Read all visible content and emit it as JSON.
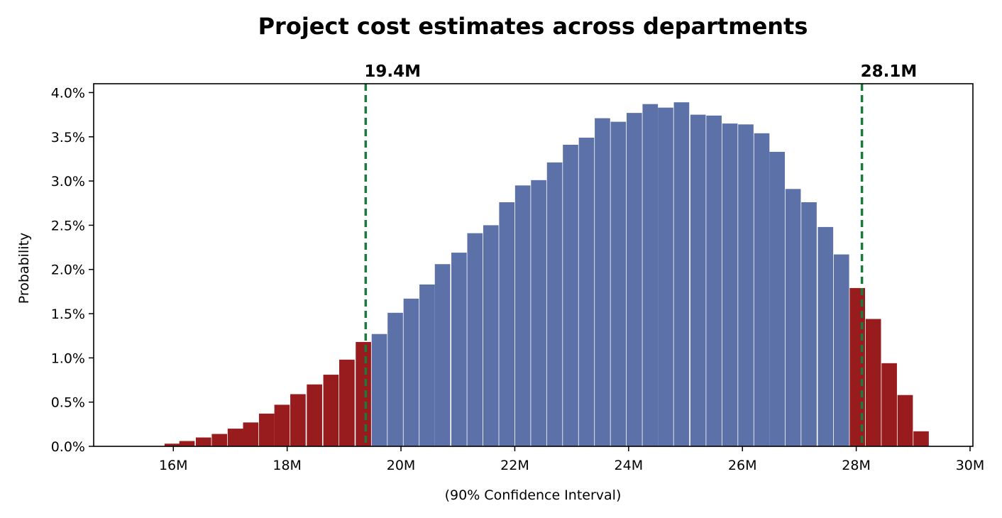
{
  "chart_data": {
    "type": "bar",
    "title": "Project cost estimates across departments",
    "xlabel": "(90% Confidence Interval)",
    "ylabel": "Probability",
    "xlim": [
      14.6,
      30.05
    ],
    "ylim": [
      0,
      0.041
    ],
    "grid": false,
    "bin_width_m": 0.27,
    "x_ticks": [
      {
        "value": 16,
        "label": "16M"
      },
      {
        "value": 18,
        "label": "18M"
      },
      {
        "value": 20,
        "label": "20M"
      },
      {
        "value": 22,
        "label": "22M"
      },
      {
        "value": 24,
        "label": "24M"
      },
      {
        "value": 26,
        "label": "26M"
      },
      {
        "value": 28,
        "label": "28M"
      },
      {
        "value": 30,
        "label": "30M"
      }
    ],
    "y_ticks": [
      {
        "value": 0.0,
        "label": "0.0%"
      },
      {
        "value": 0.005,
        "label": "0.5%"
      },
      {
        "value": 0.01,
        "label": "1.0%"
      },
      {
        "value": 0.015,
        "label": "1.5%"
      },
      {
        "value": 0.02,
        "label": "2.0%"
      },
      {
        "value": 0.025,
        "label": "2.5%"
      },
      {
        "value": 0.03,
        "label": "3.0%"
      },
      {
        "value": 0.035,
        "label": "3.5%"
      },
      {
        "value": 0.04,
        "label": "4.0%"
      }
    ],
    "colors": {
      "inside": "#5b71a8",
      "outside": "#981b1e",
      "interval_line": "#1a7a3c"
    },
    "x": [
      15.98,
      16.24,
      16.53,
      16.81,
      17.09,
      17.36,
      17.64,
      17.91,
      18.19,
      18.48,
      18.77,
      19.05,
      19.34,
      19.62,
      19.9,
      20.18,
      20.46,
      20.73,
      21.02,
      21.3,
      21.58,
      21.86,
      22.14,
      22.42,
      22.7,
      22.98,
      23.26,
      23.54,
      23.82,
      24.1,
      24.38,
      24.65,
      24.93,
      25.22,
      25.5,
      25.78,
      26.06,
      26.34,
      26.61,
      26.89,
      27.17,
      27.46,
      27.74,
      28.02,
      28.3,
      28.58,
      28.86,
      29.14
    ],
    "values": [
      0.0003,
      0.0006,
      0.001,
      0.0014,
      0.002,
      0.0027,
      0.0037,
      0.0047,
      0.0059,
      0.007,
      0.0081,
      0.0098,
      0.0118,
      0.0127,
      0.0151,
      0.0167,
      0.0183,
      0.0206,
      0.0219,
      0.0241,
      0.025,
      0.0276,
      0.0295,
      0.0301,
      0.0321,
      0.0341,
      0.0349,
      0.0371,
      0.0367,
      0.0377,
      0.0387,
      0.0383,
      0.0389,
      0.0375,
      0.0374,
      0.0365,
      0.0364,
      0.0354,
      0.0333,
      0.0291,
      0.0276,
      0.0248,
      0.0217,
      0.0179,
      0.0144,
      0.0094,
      0.0058,
      0.0017
    ],
    "outside_interval": [
      true,
      true,
      true,
      true,
      true,
      true,
      true,
      true,
      true,
      true,
      true,
      true,
      true,
      false,
      false,
      false,
      false,
      false,
      false,
      false,
      false,
      false,
      false,
      false,
      false,
      false,
      false,
      false,
      false,
      false,
      false,
      false,
      false,
      false,
      false,
      false,
      false,
      false,
      false,
      false,
      false,
      false,
      false,
      true,
      true,
      true,
      true,
      true
    ],
    "interval": {
      "lower": {
        "value": 19.38,
        "label": "19.4M"
      },
      "upper": {
        "value": 28.1,
        "label": "28.1M"
      }
    }
  }
}
